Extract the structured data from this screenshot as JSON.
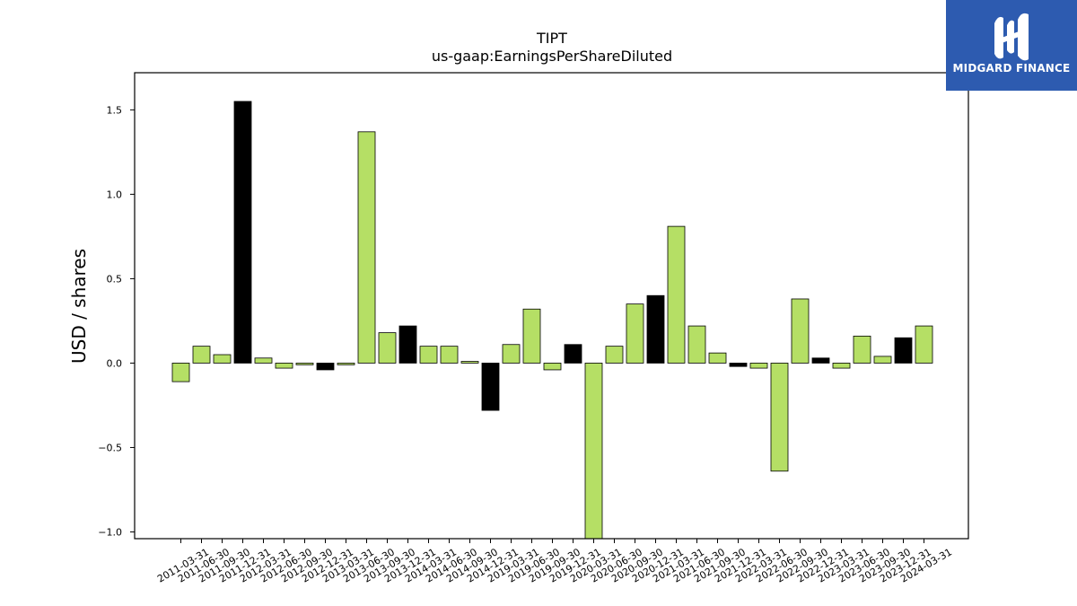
{
  "chart_data": {
    "type": "bar",
    "title": "TIPT",
    "subtitle": "us-gaap:EarningsPerShareDiluted",
    "xlabel": "",
    "ylabel": "USD / shares",
    "ylim": [
      -1.04,
      1.72
    ],
    "yticks": [
      {
        "value": -1.0,
        "label": "−1.0"
      },
      {
        "value": -0.5,
        "label": "−0.5"
      },
      {
        "value": 0.0,
        "label": "0.0"
      },
      {
        "value": 0.5,
        "label": "0.5"
      },
      {
        "value": 1.0,
        "label": "1.0"
      },
      {
        "value": 1.5,
        "label": "1.5"
      }
    ],
    "grid": false,
    "colors": {
      "positive_highlight": "#b5df65",
      "fourth_quarter": "#000000",
      "edge": "#000000"
    },
    "categories": [
      "2011-03-31",
      "2011-06-30",
      "2011-09-30",
      "2011-12-31",
      "2012-03-31",
      "2012-06-30",
      "2012-09-30",
      "2012-12-31",
      "2013-03-31",
      "2013-06-30",
      "2013-09-30",
      "2013-12-31",
      "2014-03-31",
      "2014-06-30",
      "2014-09-30",
      "2014-12-31",
      "2019-03-31",
      "2019-06-30",
      "2019-09-30",
      "2019-12-31",
      "2020-03-31",
      "2020-06-30",
      "2020-09-30",
      "2020-12-31",
      "2021-03-31",
      "2021-06-30",
      "2021-09-30",
      "2021-12-31",
      "2022-03-31",
      "2022-06-30",
      "2022-09-30",
      "2022-12-31",
      "2023-03-31",
      "2023-06-30",
      "2023-09-30",
      "2023-12-31",
      "2024-03-31"
    ],
    "values": [
      -0.11,
      0.1,
      0.05,
      1.55,
      0.03,
      -0.03,
      -0.01,
      -0.04,
      -0.01,
      1.37,
      0.18,
      0.22,
      0.1,
      0.1,
      0.01,
      -0.28,
      0.11,
      0.32,
      -0.04,
      0.11,
      -1.04,
      0.1,
      0.35,
      0.4,
      0.81,
      0.22,
      0.06,
      -0.02,
      -0.03,
      -0.64,
      0.38,
      0.03,
      -0.03,
      0.16,
      0.04,
      0.15,
      0.22
    ],
    "bar_colors": [
      "#b5df65",
      "#b5df65",
      "#b5df65",
      "#000000",
      "#b5df65",
      "#b5df65",
      "#b5df65",
      "#000000",
      "#b5df65",
      "#b5df65",
      "#b5df65",
      "#000000",
      "#b5df65",
      "#b5df65",
      "#b5df65",
      "#000000",
      "#b5df65",
      "#b5df65",
      "#b5df65",
      "#000000",
      "#b5df65",
      "#b5df65",
      "#b5df65",
      "#000000",
      "#b5df65",
      "#b5df65",
      "#b5df65",
      "#000000",
      "#b5df65",
      "#b5df65",
      "#b5df65",
      "#000000",
      "#b5df65",
      "#b5df65",
      "#b5df65",
      "#000000",
      "#b5df65"
    ]
  },
  "logo": {
    "text": "MIDGARD FINANCE",
    "icon": "midgard-logo-icon"
  }
}
